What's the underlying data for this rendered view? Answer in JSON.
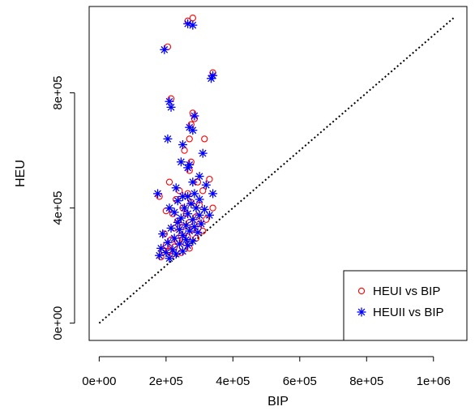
{
  "chart_data": {
    "type": "scatter",
    "xlabel": "BIP",
    "ylabel": "HEU",
    "xlim": [
      -30000,
      1100000
    ],
    "ylim": [
      -60000,
      1100000
    ],
    "x_ticks": [
      {
        "value": 0,
        "label": "0e+00"
      },
      {
        "value": 200000,
        "label": "2e+05"
      },
      {
        "value": 400000,
        "label": "4e+05"
      },
      {
        "value": 600000,
        "label": "6e+05"
      },
      {
        "value": 800000,
        "label": "8e+05"
      },
      {
        "value": 1000000,
        "label": "1e+06"
      }
    ],
    "y_ticks": [
      {
        "value": 0,
        "label": "0e+00"
      },
      {
        "value": 400000,
        "label": "4e+05"
      },
      {
        "value": 800000,
        "label": "8e+05"
      }
    ],
    "reference_line": {
      "style": "dotted",
      "color": "#000000",
      "from": [
        0,
        0
      ],
      "to": [
        1060000,
        1060000
      ]
    },
    "legend": {
      "position": "bottom-right",
      "entries": [
        {
          "label": "HEUI vs BIP",
          "marker": "circle",
          "color": "#ff0000"
        },
        {
          "label": "HEUII vs BIP",
          "marker": "asterisk",
          "color": "#0000ff"
        }
      ]
    },
    "series": [
      {
        "name": "HEUI vs BIP",
        "marker": "circle",
        "color": "#ff0000",
        "points": [
          [
            265000,
            1050000
          ],
          [
            280000,
            1060000
          ],
          [
            205000,
            960000
          ],
          [
            340000,
            870000
          ],
          [
            215000,
            780000
          ],
          [
            280000,
            730000
          ],
          [
            285000,
            710000
          ],
          [
            275000,
            690000
          ],
          [
            270000,
            640000
          ],
          [
            315000,
            640000
          ],
          [
            255000,
            600000
          ],
          [
            275000,
            560000
          ],
          [
            270000,
            530000
          ],
          [
            210000,
            490000
          ],
          [
            330000,
            500000
          ],
          [
            295000,
            490000
          ],
          [
            180000,
            440000
          ],
          [
            240000,
            460000
          ],
          [
            265000,
            450000
          ],
          [
            310000,
            460000
          ],
          [
            230000,
            430000
          ],
          [
            275000,
            420000
          ],
          [
            300000,
            410000
          ],
          [
            250000,
            400000
          ],
          [
            340000,
            400000
          ],
          [
            200000,
            390000
          ],
          [
            220000,
            380000
          ],
          [
            260000,
            380000
          ],
          [
            290000,
            370000
          ],
          [
            320000,
            360000
          ],
          [
            235000,
            355000
          ],
          [
            270000,
            350000
          ],
          [
            300000,
            345000
          ],
          [
            250000,
            335000
          ],
          [
            225000,
            330000
          ],
          [
            280000,
            325000
          ],
          [
            310000,
            320000
          ],
          [
            195000,
            310000
          ],
          [
            245000,
            305000
          ],
          [
            265000,
            300000
          ],
          [
            290000,
            295000
          ],
          [
            215000,
            290000
          ],
          [
            235000,
            285000
          ],
          [
            255000,
            280000
          ],
          [
            200000,
            270000
          ],
          [
            225000,
            265000
          ],
          [
            270000,
            260000
          ],
          [
            190000,
            255000
          ],
          [
            210000,
            250000
          ],
          [
            245000,
            245000
          ],
          [
            185000,
            230000
          ],
          [
            220000,
            240000
          ]
        ]
      },
      {
        "name": "HEUII vs BIP",
        "marker": "asterisk",
        "color": "#0000ff",
        "points": [
          [
            265000,
            1040000
          ],
          [
            280000,
            1035000
          ],
          [
            195000,
            950000
          ],
          [
            335000,
            850000
          ],
          [
            340000,
            860000
          ],
          [
            210000,
            770000
          ],
          [
            215000,
            750000
          ],
          [
            285000,
            720000
          ],
          [
            270000,
            680000
          ],
          [
            280000,
            670000
          ],
          [
            205000,
            640000
          ],
          [
            250000,
            620000
          ],
          [
            310000,
            590000
          ],
          [
            245000,
            560000
          ],
          [
            270000,
            550000
          ],
          [
            265000,
            540000
          ],
          [
            300000,
            510000
          ],
          [
            280000,
            490000
          ],
          [
            320000,
            480000
          ],
          [
            230000,
            470000
          ],
          [
            175000,
            450000
          ],
          [
            285000,
            450000
          ],
          [
            340000,
            450000
          ],
          [
            250000,
            440000
          ],
          [
            265000,
            440000
          ],
          [
            300000,
            430000
          ],
          [
            235000,
            425000
          ],
          [
            275000,
            415000
          ],
          [
            210000,
            400000
          ],
          [
            255000,
            400000
          ],
          [
            290000,
            400000
          ],
          [
            315000,
            395000
          ],
          [
            225000,
            385000
          ],
          [
            265000,
            380000
          ],
          [
            300000,
            375000
          ],
          [
            330000,
            375000
          ],
          [
            245000,
            365000
          ],
          [
            280000,
            360000
          ],
          [
            235000,
            350000
          ],
          [
            305000,
            345000
          ],
          [
            260000,
            340000
          ],
          [
            285000,
            335000
          ],
          [
            215000,
            330000
          ],
          [
            240000,
            325000
          ],
          [
            270000,
            320000
          ],
          [
            295000,
            315000
          ],
          [
            190000,
            310000
          ],
          [
            250000,
            305000
          ],
          [
            225000,
            295000
          ],
          [
            260000,
            290000
          ],
          [
            280000,
            285000
          ],
          [
            205000,
            280000
          ],
          [
            240000,
            275000
          ],
          [
            265000,
            270000
          ],
          [
            185000,
            260000
          ],
          [
            220000,
            255000
          ],
          [
            250000,
            250000
          ],
          [
            200000,
            245000
          ],
          [
            230000,
            240000
          ],
          [
            180000,
            235000
          ],
          [
            210000,
            225000
          ]
        ]
      }
    ]
  }
}
